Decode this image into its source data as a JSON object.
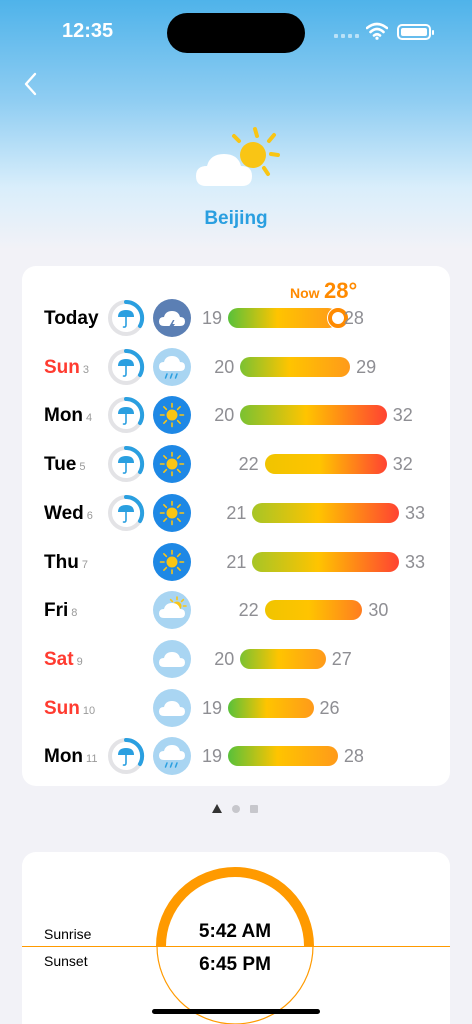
{
  "status": {
    "time": "12:35"
  },
  "header": {
    "city": "Beijing"
  },
  "now": {
    "label": "Now",
    "temp": "28°",
    "temp_value": 28
  },
  "colors": {
    "accent": "#2a9fe0",
    "now": "#ff8a00",
    "weekend": "#ff3b30",
    "rain_ring": "#2a9fe0",
    "sunrise_arc": "#ff9a00"
  },
  "forecast": [
    {
      "day": "Today",
      "date": "",
      "weekend": false,
      "rain": true,
      "icon": "thunderstorm-icon",
      "low": "19",
      "high": "28",
      "low_v": 19,
      "high_v": 28,
      "now": true
    },
    {
      "day": "Sun",
      "date": "3",
      "weekend": true,
      "rain": true,
      "icon": "rain-cloud-icon",
      "low": "20",
      "high": "29",
      "low_v": 20,
      "high_v": 29
    },
    {
      "day": "Mon",
      "date": "4",
      "weekend": false,
      "rain": true,
      "icon": "sun-icon",
      "low": "20",
      "high": "32",
      "low_v": 20,
      "high_v": 32
    },
    {
      "day": "Tue",
      "date": "5",
      "weekend": false,
      "rain": true,
      "icon": "sun-icon",
      "low": "22",
      "high": "32",
      "low_v": 22,
      "high_v": 32
    },
    {
      "day": "Wed",
      "date": "6",
      "weekend": false,
      "rain": true,
      "icon": "sun-icon",
      "low": "21",
      "high": "33",
      "low_v": 21,
      "high_v": 33
    },
    {
      "day": "Thu",
      "date": "7",
      "weekend": false,
      "rain": false,
      "icon": "sun-icon",
      "low": "21",
      "high": "33",
      "low_v": 21,
      "high_v": 33
    },
    {
      "day": "Fri",
      "date": "8",
      "weekend": false,
      "rain": false,
      "icon": "partly-cloudy-icon",
      "low": "22",
      "high": "30",
      "low_v": 22,
      "high_v": 30
    },
    {
      "day": "Sat",
      "date": "9",
      "weekend": true,
      "rain": false,
      "icon": "cloud-icon",
      "low": "20",
      "high": "27",
      "low_v": 20,
      "high_v": 27
    },
    {
      "day": "Sun",
      "date": "10",
      "weekend": true,
      "rain": false,
      "icon": "cloud-icon",
      "low": "19",
      "high": "26",
      "low_v": 19,
      "high_v": 26
    },
    {
      "day": "Mon",
      "date": "11",
      "weekend": false,
      "rain": true,
      "icon": "rain-cloud-icon",
      "low": "19",
      "high": "28",
      "low_v": 19,
      "high_v": 28
    }
  ],
  "pagination": {
    "count": 3,
    "active": 0
  },
  "sun": {
    "sunrise_label": "Sunrise",
    "sunrise_time": "5:42 AM",
    "sunset_label": "Sunset",
    "sunset_time": "6:45 PM"
  }
}
